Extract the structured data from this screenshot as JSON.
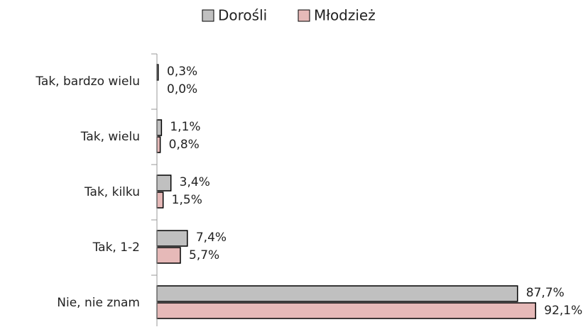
{
  "chart_data": {
    "type": "bar",
    "orientation": "horizontal",
    "categories": [
      "Tak, bardzo wielu",
      "Tak, wielu",
      "Tak, kilku",
      "Tak, 1-2",
      "Nie, nie znam"
    ],
    "series": [
      {
        "name": "Dorośli",
        "color": "#c0c0c0",
        "values": [
          0.3,
          1.1,
          3.4,
          7.4,
          87.7
        ],
        "value_labels": [
          "0,3%",
          "1,1%",
          "3,4%",
          "7,4%",
          "87,7%"
        ]
      },
      {
        "name": "Młodzież",
        "color": "#e6b9b8",
        "values": [
          0.0,
          0.8,
          1.5,
          5.7,
          92.1
        ],
        "value_labels": [
          "0,0%",
          "0,8%",
          "1,5%",
          "5,7%",
          "92,1%"
        ]
      }
    ],
    "xlim": [
      0,
      100
    ],
    "legend": "top"
  }
}
